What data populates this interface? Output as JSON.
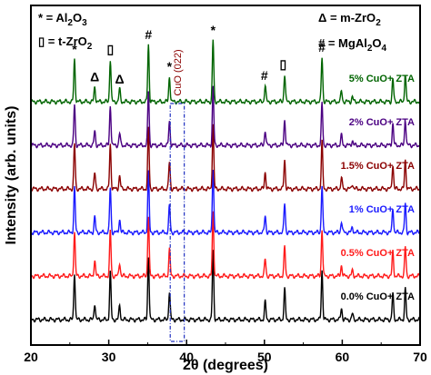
{
  "chart_data": {
    "type": "line",
    "xlabel": "2θ (degrees)",
    "ylabel": "Intensity (arb. units)",
    "xlim": [
      20,
      70
    ],
    "x_ticks": [
      20,
      30,
      40,
      50,
      60,
      70
    ],
    "y_ticks_shown": false,
    "grid": false,
    "legend": [
      {
        "symbol": "*",
        "label_main": "= Al",
        "sub1": "2",
        "mid": "O",
        "sub2": "3",
        "position": "top-left"
      },
      {
        "symbol": "Δ",
        "label_main": "= m-ZrO",
        "sub1": "2",
        "position": "top-right"
      },
      {
        "symbol": "▯",
        "label_main": "= t-ZrO",
        "sub1": "2",
        "position": "top-left"
      },
      {
        "symbol": "#",
        "label_main": "= MgAl",
        "sub1": "2",
        "mid": "O",
        "sub2": "4",
        "position": "top-right"
      }
    ],
    "phase_markers": [
      {
        "symbol": "*",
        "x": 25.6
      },
      {
        "symbol": "▯",
        "x": 30.2
      },
      {
        "symbol": "Δ",
        "x": 28.2
      },
      {
        "symbol": "Δ",
        "x": 31.4
      },
      {
        "symbol": "#",
        "x": 35.1
      },
      {
        "symbol": "*",
        "x": 37.8
      },
      {
        "symbol": "*",
        "x": 43.4
      },
      {
        "symbol": "#",
        "x": 50.0
      },
      {
        "symbol": "▯",
        "x": 52.4
      },
      {
        "symbol": "#",
        "x": 57.4
      }
    ],
    "annotation": {
      "text": "CuO (022)",
      "x_range": [
        37.9,
        39.7
      ]
    },
    "peaks": [
      {
        "x": 25.6,
        "h": 1.0
      },
      {
        "x": 28.2,
        "h": 0.35
      },
      {
        "x": 30.2,
        "h": 1.0
      },
      {
        "x": 31.4,
        "h": 0.3
      },
      {
        "x": 35.1,
        "h": 1.35
      },
      {
        "x": 37.8,
        "h": 0.6
      },
      {
        "x": 43.4,
        "h": 1.45
      },
      {
        "x": 50.1,
        "h": 0.38
      },
      {
        "x": 52.6,
        "h": 0.65
      },
      {
        "x": 57.4,
        "h": 1.05
      },
      {
        "x": 59.9,
        "h": 0.25
      },
      {
        "x": 61.3,
        "h": 0.12
      },
      {
        "x": 66.5,
        "h": 0.55
      },
      {
        "x": 68.1,
        "h": 0.65
      }
    ],
    "series": [
      {
        "name": "0.0% CuO+ ZTA",
        "color": "#000000",
        "intensity_scale": 1.0
      },
      {
        "name": "0.5% CuO+ ZTA",
        "color": "#ff1a1a",
        "intensity_scale": 0.95
      },
      {
        "name": "1% CuO+ ZTA",
        "color": "#1a1aff",
        "intensity_scale": 0.95
      },
      {
        "name": "1.5% CuO+ ZTA",
        "color": "#8b0000",
        "intensity_scale": 0.95
      },
      {
        "name": "2% CuO+ ZTA",
        "color": "#4b0082",
        "intensity_scale": 0.85
      },
      {
        "name": "5% CuO+ ZTA",
        "color": "#006400",
        "intensity_scale": 0.9
      }
    ]
  }
}
